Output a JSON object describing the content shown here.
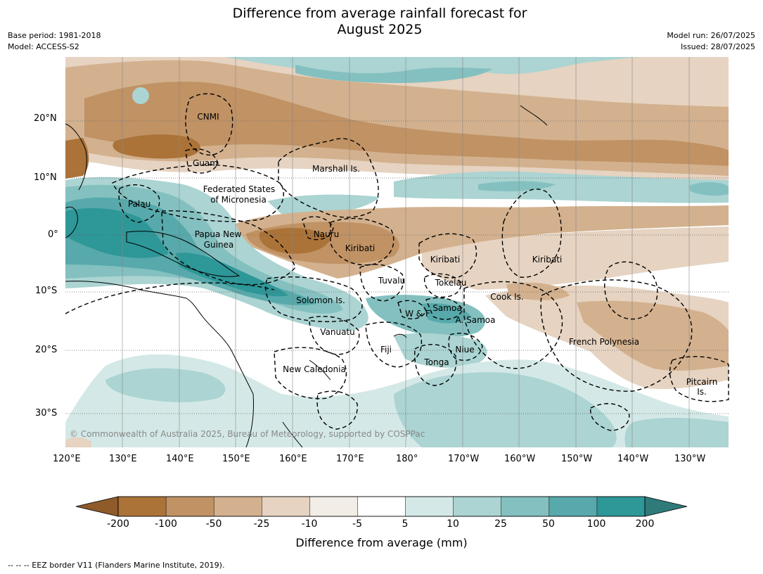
{
  "header": {
    "title_line1": "Difference from average rainfall forecast for",
    "title_line2": "August 2025",
    "base_period": "Base period: 1981-2018",
    "model": "Model: ACCESS-S2",
    "model_run": "Model run: 26/07/2025",
    "issued": "Issued: 28/07/2025"
  },
  "map": {
    "lat_ticks": [
      "20°N",
      "10°N",
      "0°",
      "10°S",
      "20°S",
      "30°S"
    ],
    "lon_ticks": [
      "120°E",
      "130°E",
      "140°E",
      "150°E",
      "160°E",
      "170°E",
      "180°",
      "170°W",
      "160°W",
      "150°W",
      "140°W",
      "130°W"
    ],
    "regions": [
      "CNMI",
      "Guam",
      "Marshall Is.",
      "Federated States",
      "of Micronesia",
      "Palau",
      "Papua New",
      "Guinea",
      "Nauru",
      "Kiribati",
      "Kiribati",
      "Kiribati",
      "Tuvalu",
      "Tokelau",
      "Cook Is.",
      "Solomon Is.",
      "W & F",
      "Samoa",
      "A. Samoa",
      "Vanuatu",
      "Fiji",
      "Niue",
      "Tonga",
      "French Polynesia",
      "New Caledonia",
      "Pitcairn",
      "Is."
    ],
    "copyright": "© Commonwealth of Australia 2025, Bureau of Meteorology, supported by COSPPac"
  },
  "colorbar": {
    "label": "Difference from average (mm)",
    "ticks": [
      "-200",
      "-100",
      "-50",
      "-25",
      "-10",
      "-5",
      "5",
      "10",
      "25",
      "50",
      "100",
      "200"
    ],
    "colors": [
      "#ab7338",
      "#c09264",
      "#d3b18e",
      "#e6d3c1",
      "#f2ede6",
      "#ffffff",
      "#d4e9e7",
      "#abd4d2",
      "#84c0c0",
      "#57a9ab",
      "#2e9798"
    ],
    "under_color": "#8f5b2a",
    "over_color": "#2e7b7a"
  },
  "footer": {
    "eez_note": "--  --  -- EEZ border V11 (Flanders Marine Institute, 2019)."
  }
}
